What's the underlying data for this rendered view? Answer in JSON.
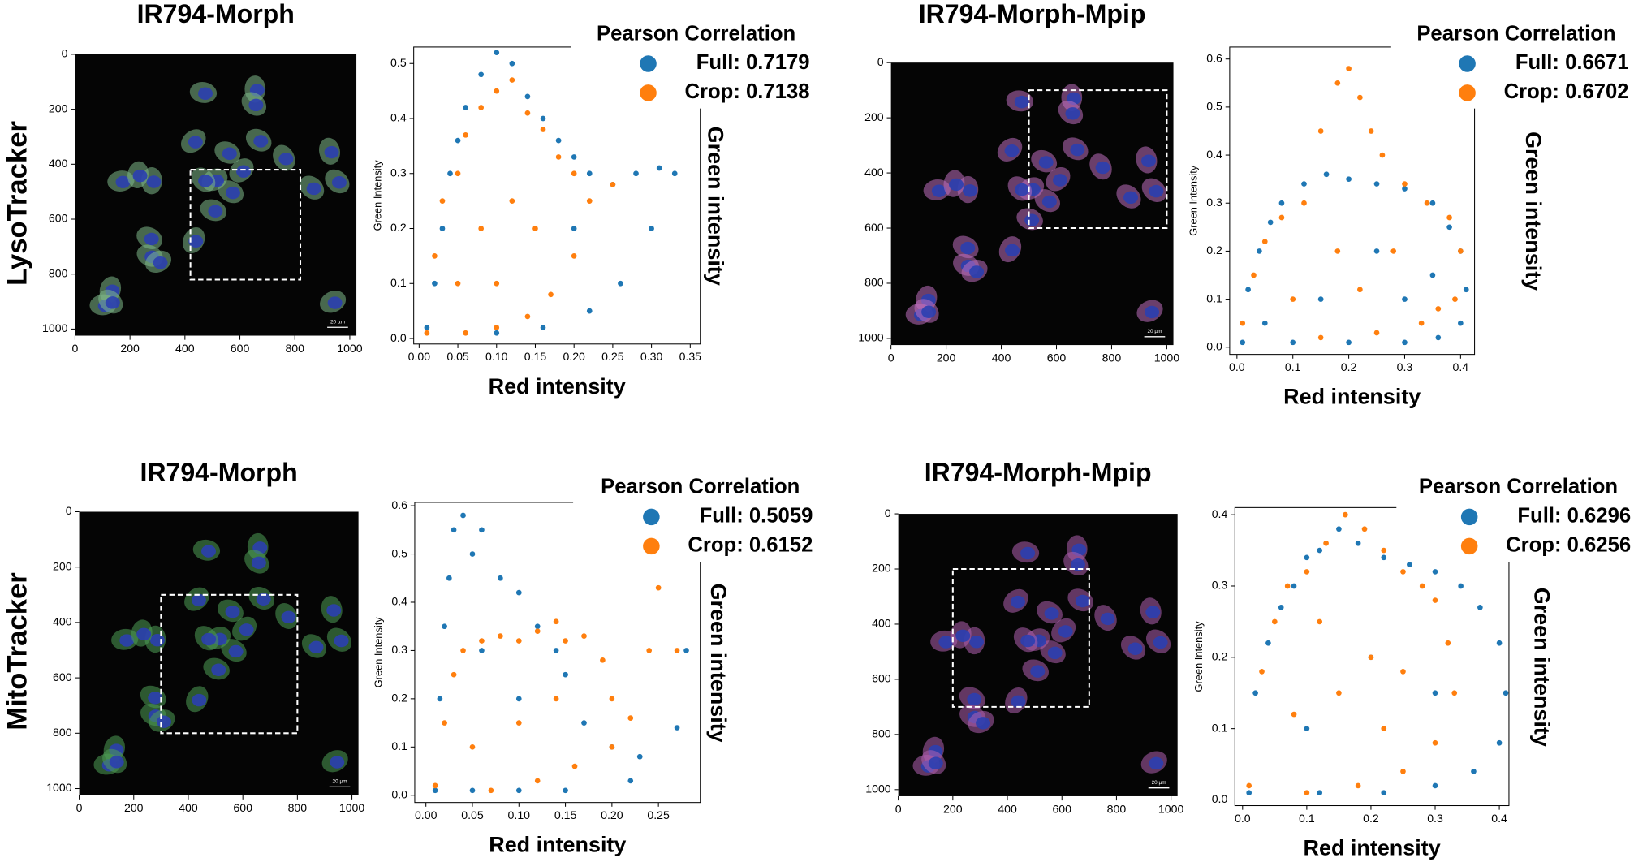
{
  "row_labels": [
    "LysoTracker",
    "MitoTracker"
  ],
  "chart_data": [
    {
      "type": "image",
      "title": "IR794-Morph",
      "xlim": [
        0,
        1024
      ],
      "ylim": [
        1024,
        0
      ],
      "xticks": [
        0,
        200,
        400,
        600,
        800,
        1000
      ],
      "yticks": [
        0,
        200,
        400,
        600,
        800,
        1000
      ],
      "crop": {
        "x": [
          420,
          820
        ],
        "y": [
          420,
          820
        ]
      },
      "scale_bar": "20 µm",
      "cell_color": "#7fb98a"
    },
    {
      "type": "scatter",
      "xlabel": "Red intensity",
      "ylabel": "Green Intensity",
      "ylabel_right": "Green intensity",
      "legend_title": "Pearson Correlation",
      "xlim": [
        -0.007,
        0.363
      ],
      "ylim": [
        -0.01,
        0.53
      ],
      "xticks": [
        {
          "value": 0,
          "label": "0.00"
        },
        0.05,
        {
          "value": 0.1,
          "label": "0.10"
        },
        0.15,
        {
          "value": 0.2,
          "label": "0.20"
        },
        0.25,
        {
          "value": 0.3,
          "label": "0.30"
        },
        0.35
      ],
      "yticks": [
        {
          "value": 0,
          "label": "0.0"
        },
        0.1,
        0.2,
        0.3,
        0.4,
        0.5
      ],
      "series": [
        {
          "name": "Full: 0.7179",
          "color": "#1f77b4",
          "x": [
            0.01,
            0.02,
            0.03,
            0.04,
            0.05,
            0.06,
            0.08,
            0.1,
            0.12,
            0.14,
            0.16,
            0.18,
            0.2,
            0.22,
            0.25,
            0.28,
            0.31,
            0.33,
            0.3,
            0.26,
            0.22,
            0.16,
            0.1,
            0.2
          ],
          "y": [
            0.02,
            0.1,
            0.2,
            0.3,
            0.36,
            0.42,
            0.48,
            0.52,
            0.5,
            0.44,
            0.4,
            0.36,
            0.33,
            0.3,
            0.28,
            0.3,
            0.31,
            0.3,
            0.2,
            0.1,
            0.05,
            0.02,
            0.01,
            0.2
          ]
        },
        {
          "name": "Crop: 0.7138",
          "color": "#ff7f0e",
          "x": [
            0.01,
            0.02,
            0.03,
            0.05,
            0.06,
            0.08,
            0.1,
            0.12,
            0.14,
            0.16,
            0.18,
            0.2,
            0.22,
            0.2,
            0.17,
            0.14,
            0.1,
            0.06,
            0.08,
            0.12,
            0.05,
            0.15,
            0.1,
            0.25
          ],
          "y": [
            0.01,
            0.15,
            0.25,
            0.3,
            0.37,
            0.42,
            0.45,
            0.47,
            0.41,
            0.38,
            0.33,
            0.3,
            0.25,
            0.15,
            0.08,
            0.04,
            0.02,
            0.01,
            0.2,
            0.25,
            0.1,
            0.2,
            0.1,
            0.28
          ]
        }
      ]
    },
    {
      "type": "image",
      "title": "IR794-Morph-Mpip",
      "xlim": [
        0,
        1024
      ],
      "ylim": [
        1024,
        0
      ],
      "xticks": [
        0,
        200,
        400,
        600,
        800,
        1000
      ],
      "yticks": [
        0,
        200,
        400,
        600,
        800,
        1000
      ],
      "crop": {
        "x": [
          500,
          1000
        ],
        "y": [
          100,
          600
        ]
      },
      "scale_bar": "20 µm",
      "cell_color": "#c070c0"
    },
    {
      "type": "scatter",
      "xlabel": "Red intensity",
      "ylabel": "Green Intensity",
      "ylabel_right": "Green intensity",
      "legend_title": "Pearson Correlation",
      "xlim": [
        -0.013,
        0.425
      ],
      "ylim": [
        -0.015,
        0.625
      ],
      "xticks": [
        {
          "value": 0,
          "label": "0.0"
        },
        0.1,
        0.2,
        0.3,
        0.4
      ],
      "yticks": [
        {
          "value": 0,
          "label": "0.0"
        },
        0.1,
        0.2,
        0.3,
        0.4,
        0.5,
        0.6
      ],
      "series": [
        {
          "name": "Full: 0.6671",
          "color": "#1f77b4",
          "x": [
            0.01,
            0.02,
            0.04,
            0.06,
            0.08,
            0.12,
            0.16,
            0.2,
            0.25,
            0.3,
            0.35,
            0.38,
            0.4,
            0.41,
            0.4,
            0.36,
            0.3,
            0.2,
            0.1,
            0.35,
            0.25,
            0.15,
            0.3,
            0.05
          ],
          "y": [
            0.01,
            0.12,
            0.2,
            0.26,
            0.3,
            0.34,
            0.36,
            0.35,
            0.34,
            0.33,
            0.3,
            0.25,
            0.2,
            0.12,
            0.05,
            0.02,
            0.01,
            0.01,
            0.01,
            0.15,
            0.2,
            0.1,
            0.1,
            0.05
          ]
        },
        {
          "name": "Crop: 0.6702",
          "color": "#ff7f0e",
          "x": [
            0.01,
            0.03,
            0.05,
            0.08,
            0.12,
            0.15,
            0.18,
            0.2,
            0.22,
            0.24,
            0.26,
            0.3,
            0.34,
            0.38,
            0.4,
            0.39,
            0.33,
            0.25,
            0.15,
            0.18,
            0.28,
            0.1,
            0.22,
            0.36
          ],
          "y": [
            0.05,
            0.15,
            0.22,
            0.27,
            0.3,
            0.45,
            0.55,
            0.58,
            0.52,
            0.45,
            0.4,
            0.34,
            0.3,
            0.27,
            0.2,
            0.1,
            0.05,
            0.03,
            0.02,
            0.2,
            0.2,
            0.1,
            0.12,
            0.08
          ]
        }
      ]
    },
    {
      "type": "image",
      "title": "IR794-Morph",
      "xlim": [
        0,
        1024
      ],
      "ylim": [
        1024,
        0
      ],
      "xticks": [
        0,
        200,
        400,
        600,
        800,
        1000
      ],
      "yticks": [
        0,
        200,
        400,
        600,
        800,
        1000
      ],
      "crop": {
        "x": [
          300,
          800
        ],
        "y": [
          300,
          800
        ]
      },
      "scale_bar": "20 µm",
      "cell_color": "#4f9f55"
    },
    {
      "type": "scatter",
      "xlabel": "Red intensity",
      "ylabel": "Green Intensity",
      "ylabel_right": "Green intensity",
      "legend_title": "Pearson Correlation",
      "xlim": [
        -0.012,
        0.295
      ],
      "ylim": [
        -0.015,
        0.607
      ],
      "xticks": [
        {
          "value": 0,
          "label": "0.00"
        },
        0.05,
        {
          "value": 0.1,
          "label": "0.10"
        },
        0.15,
        {
          "value": 0.2,
          "label": "0.20"
        },
        0.25
      ],
      "yticks": [
        {
          "value": 0,
          "label": "0.0"
        },
        0.1,
        0.2,
        0.3,
        0.4,
        0.5,
        0.6
      ],
      "series": [
        {
          "name": "Full: 0.5059",
          "color": "#1f77b4",
          "x": [
            0.01,
            0.015,
            0.02,
            0.025,
            0.03,
            0.04,
            0.05,
            0.06,
            0.08,
            0.1,
            0.12,
            0.14,
            0.15,
            0.17,
            0.2,
            0.23,
            0.27,
            0.28,
            0.22,
            0.15,
            0.1,
            0.05,
            0.1,
            0.06
          ],
          "y": [
            0.01,
            0.2,
            0.35,
            0.45,
            0.55,
            0.58,
            0.5,
            0.55,
            0.45,
            0.42,
            0.35,
            0.3,
            0.25,
            0.15,
            0.1,
            0.08,
            0.14,
            0.3,
            0.03,
            0.01,
            0.01,
            0.01,
            0.2,
            0.3
          ]
        },
        {
          "name": "Crop: 0.6152",
          "color": "#ff7f0e",
          "x": [
            0.01,
            0.02,
            0.03,
            0.04,
            0.06,
            0.08,
            0.1,
            0.12,
            0.14,
            0.15,
            0.17,
            0.19,
            0.2,
            0.22,
            0.2,
            0.16,
            0.12,
            0.07,
            0.25,
            0.24,
            0.27,
            0.1,
            0.05,
            0.14
          ],
          "y": [
            0.02,
            0.15,
            0.25,
            0.3,
            0.32,
            0.33,
            0.32,
            0.34,
            0.36,
            0.32,
            0.33,
            0.28,
            0.2,
            0.16,
            0.1,
            0.06,
            0.03,
            0.01,
            0.43,
            0.3,
            0.3,
            0.15,
            0.1,
            0.2
          ]
        }
      ]
    },
    {
      "type": "image",
      "title": "IR794-Morph-Mpip",
      "xlim": [
        0,
        1024
      ],
      "ylim": [
        1024,
        0
      ],
      "xticks": [
        0,
        200,
        400,
        600,
        800,
        1000
      ],
      "yticks": [
        0,
        200,
        400,
        600,
        800,
        1000
      ],
      "crop": {
        "x": [
          200,
          700
        ],
        "y": [
          200,
          700
        ]
      },
      "scale_bar": "20 µm",
      "cell_color": "#b060b0"
    },
    {
      "type": "scatter",
      "xlabel": "Red intensity",
      "ylabel": "Green Intensity",
      "ylabel_right": "Green intensity",
      "legend_title": "Pearson Correlation",
      "xlim": [
        -0.012,
        0.415
      ],
      "ylim": [
        -0.008,
        0.41
      ],
      "xticks": [
        {
          "value": 0,
          "label": "0.0"
        },
        0.1,
        0.2,
        0.3,
        0.4
      ],
      "yticks": [
        {
          "value": 0,
          "label": "0.0"
        },
        0.1,
        0.2,
        0.3,
        0.4
      ],
      "series": [
        {
          "name": "Full: 0.6296",
          "color": "#1f77b4",
          "x": [
            0.01,
            0.02,
            0.04,
            0.06,
            0.08,
            0.1,
            0.12,
            0.15,
            0.18,
            0.22,
            0.26,
            0.3,
            0.34,
            0.37,
            0.4,
            0.41,
            0.4,
            0.36,
            0.3,
            0.22,
            0.12,
            0.3,
            0.2,
            0.1
          ],
          "y": [
            0.01,
            0.15,
            0.22,
            0.27,
            0.3,
            0.34,
            0.35,
            0.38,
            0.36,
            0.34,
            0.33,
            0.32,
            0.3,
            0.27,
            0.22,
            0.15,
            0.08,
            0.04,
            0.02,
            0.01,
            0.01,
            0.15,
            0.2,
            0.1
          ]
        },
        {
          "name": "Crop: 0.6256",
          "color": "#ff7f0e",
          "x": [
            0.01,
            0.03,
            0.05,
            0.07,
            0.1,
            0.13,
            0.16,
            0.19,
            0.22,
            0.25,
            0.28,
            0.3,
            0.32,
            0.33,
            0.3,
            0.25,
            0.18,
            0.1,
            0.2,
            0.15,
            0.25,
            0.08,
            0.12,
            0.22
          ],
          "y": [
            0.02,
            0.18,
            0.25,
            0.3,
            0.32,
            0.36,
            0.4,
            0.38,
            0.35,
            0.32,
            0.3,
            0.28,
            0.22,
            0.15,
            0.08,
            0.04,
            0.02,
            0.01,
            0.2,
            0.15,
            0.18,
            0.12,
            0.25,
            0.1
          ]
        }
      ]
    }
  ]
}
